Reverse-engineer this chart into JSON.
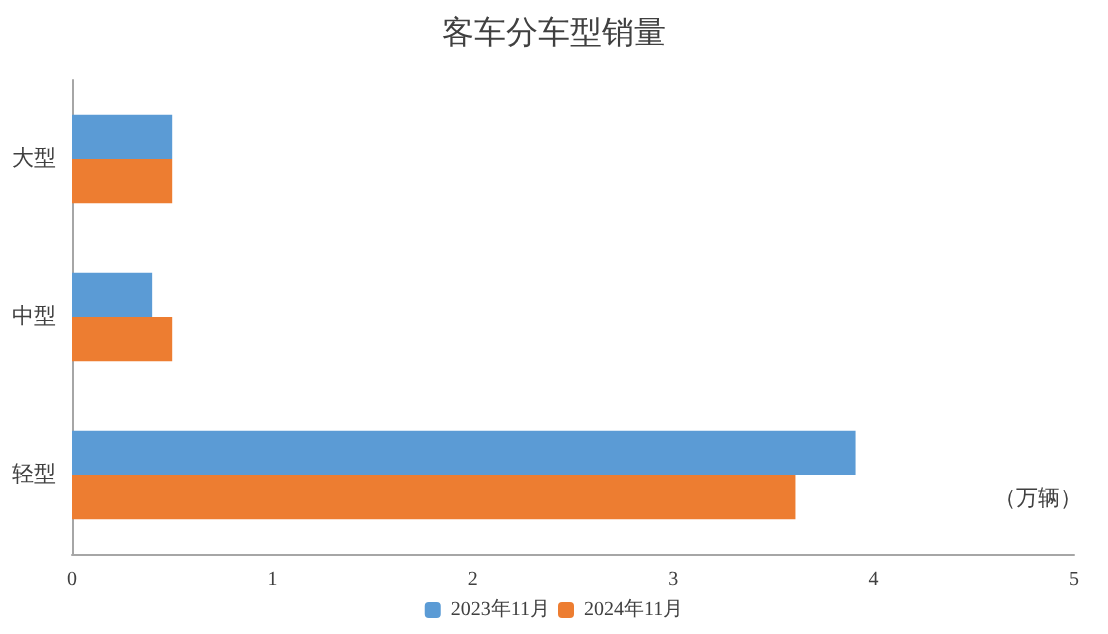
{
  "chart_data": {
    "type": "bar",
    "orientation": "horizontal",
    "title": "客车分车型销量",
    "xlabel": "（万辆）",
    "categories": [
      "大型",
      "中型",
      "轻型"
    ],
    "series": [
      {
        "name": "2023年11月",
        "color": "#5b9bd5",
        "values": [
          0.5,
          0.4,
          3.91
        ]
      },
      {
        "name": "2024年11月",
        "color": "#ed7d31",
        "values": [
          0.5,
          0.5,
          3.61
        ]
      }
    ],
    "xlim": [
      0,
      5
    ],
    "xticks": [
      0,
      1,
      2,
      3,
      4,
      5
    ],
    "grid": false,
    "legend": "bottom"
  }
}
